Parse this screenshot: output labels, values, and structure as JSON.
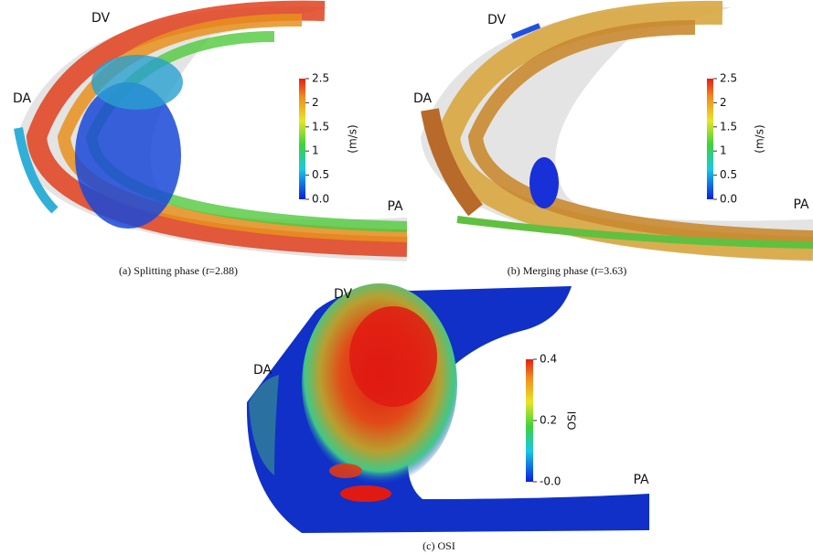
{
  "panels": [
    {
      "labels": [
        "DV",
        "DA",
        "PA"
      ],
      "colorbar": {
        "title": "(m/s)",
        "lim": [
          0,
          2.5
        ],
        "ticks": [
          2.5,
          2,
          1.5,
          1,
          0.5,
          {
            "value": 0,
            "label": "0.0"
          }
        ]
      },
      "caption": {
        "prefix": "(a) Splitting phase (",
        "variable": "t",
        "suffix": "=2.88)"
      }
    },
    {
      "labels": [
        "DV",
        "DA",
        "PA"
      ],
      "colorbar": {
        "title": "(m/s)",
        "lim": [
          0,
          2.5
        ],
        "ticks": [
          2.5,
          2,
          1.5,
          1,
          0.5,
          {
            "value": 0,
            "label": "0.0"
          }
        ]
      },
      "caption": {
        "prefix": "(b) Merging phase (",
        "variable": "t",
        "suffix": "=3.63)"
      }
    },
    {
      "labels": [
        "DV",
        "DA",
        "PA"
      ],
      "colorbar": {
        "title": "OSI",
        "lim": [
          0,
          0.4
        ],
        "ticks": [
          0.4,
          0.2,
          {
            "value": 0,
            "label": "-0.0"
          }
        ]
      },
      "caption": {
        "prefix": "(c) OSI"
      }
    }
  ]
}
